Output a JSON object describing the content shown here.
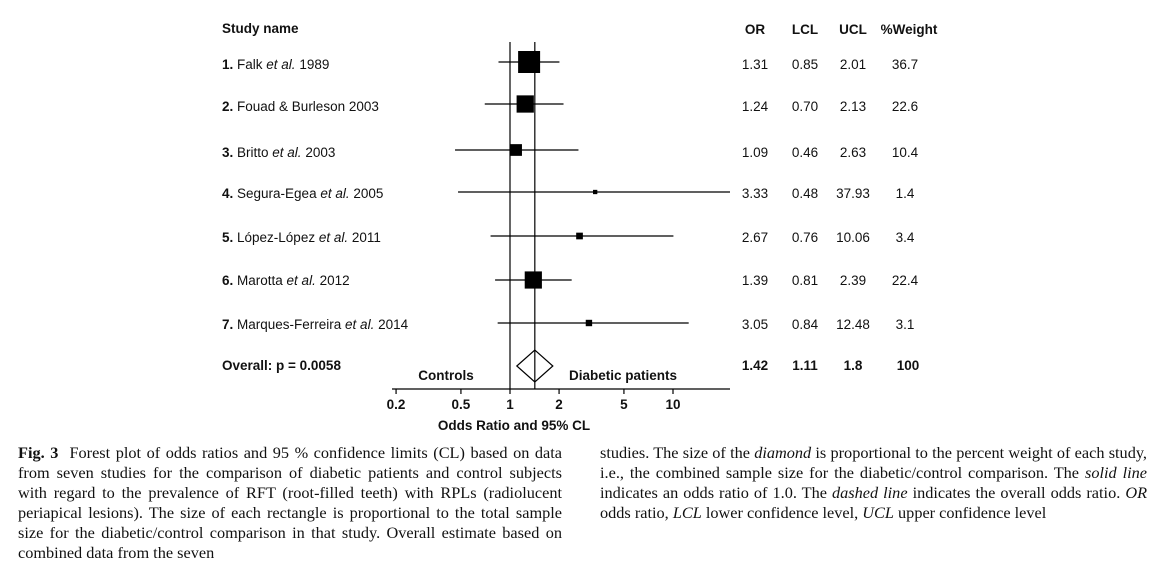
{
  "chart_data": {
    "type": "forest",
    "title": "",
    "xlabel": "Odds Ratio and 95% CL",
    "xscale": "log",
    "xlim": [
      0.2,
      20
    ],
    "xticks": [
      0.2,
      0.5,
      1,
      2,
      5,
      10
    ],
    "xtick_labels": [
      "0.2",
      "0.5",
      "1",
      "2",
      "5",
      "10"
    ],
    "reference_line": 1,
    "side_labels": {
      "left": "Controls",
      "right": "Diabetic patients"
    },
    "column_headers": {
      "study": "Study name",
      "or": "OR",
      "lcl": "LCL",
      "ucl": "UCL",
      "weight": "%Weight"
    },
    "studies": [
      {
        "num": "1.",
        "author": "Falk",
        "etal": true,
        "year": "1989",
        "or": 1.31,
        "lcl": 0.85,
        "ucl": 2.01,
        "weight": 36.7,
        "or_text": "1.31",
        "lcl_text": "0.85",
        "ucl_text": "2.01",
        "weight_text": "36.7"
      },
      {
        "num": "2.",
        "author": "Fouad & Burleson",
        "etal": false,
        "year": "2003",
        "or": 1.24,
        "lcl": 0.7,
        "ucl": 2.13,
        "weight": 22.6,
        "or_text": "1.24",
        "lcl_text": "0.70",
        "ucl_text": "2.13",
        "weight_text": "22.6"
      },
      {
        "num": "3.",
        "author": "Britto",
        "etal": true,
        "year": "2003",
        "or": 1.09,
        "lcl": 0.46,
        "ucl": 2.63,
        "weight": 10.4,
        "or_text": "1.09",
        "lcl_text": "0.46",
        "ucl_text": "2.63",
        "weight_text": "10.4"
      },
      {
        "num": "4.",
        "author": "Segura-Egea",
        "etal": true,
        "year": "2005",
        "or": 3.33,
        "lcl": 0.48,
        "ucl": 37.93,
        "weight": 1.4,
        "or_text": "3.33",
        "lcl_text": "0.48",
        "ucl_text": "37.93",
        "weight_text": "1.4"
      },
      {
        "num": "5.",
        "author": "López-López",
        "etal": true,
        "year": "2011",
        "or": 2.67,
        "lcl": 0.76,
        "ucl": 10.06,
        "weight": 3.4,
        "or_text": "2.67",
        "lcl_text": "0.76",
        "ucl_text": "10.06",
        "weight_text": "3.4"
      },
      {
        "num": "6.",
        "author": "Marotta",
        "etal": true,
        "year": "2012",
        "or": 1.39,
        "lcl": 0.81,
        "ucl": 2.39,
        "weight": 22.4,
        "or_text": "1.39",
        "lcl_text": "0.81",
        "ucl_text": "2.39",
        "weight_text": "22.4"
      },
      {
        "num": "7.",
        "author": "Marques-Ferreira",
        "etal": true,
        "year": "2014",
        "or": 3.05,
        "lcl": 0.84,
        "ucl": 12.48,
        "weight": 3.1,
        "or_text": "3.05",
        "lcl_text": "0.84",
        "ucl_text": "12.48",
        "weight_text": "3.1"
      }
    ],
    "overall": {
      "label": "Overall: p = 0.0058",
      "or": 1.42,
      "lcl": 1.11,
      "ucl": 1.8,
      "weight": 100,
      "or_text": "1.42",
      "lcl_text": "1.11",
      "ucl_text": "1.8",
      "weight_text": "100"
    },
    "etal_text": "et al."
  },
  "caption": {
    "fig_label": "Fig. 3",
    "left_text": "Forest plot of odds ratios and 95 % confidence limits (CL) based on data from seven studies for the comparison of diabetic patients and control subjects with regard to the prevalence of RFT (root-filled teeth) with RPLs (radiolucent periapical lesions). The size of each rectangle is proportional to the total sample size for the diabetic/control comparison in that study. Overall estimate based on combined data from the seven",
    "right_parts": [
      {
        "t": "studies. The size of the ",
        "i": false
      },
      {
        "t": "diamond",
        "i": true
      },
      {
        "t": " is proportional to the percent weight of each study, i.e., the combined sample size for the diabetic/control comparison. The ",
        "i": false
      },
      {
        "t": "solid line",
        "i": true
      },
      {
        "t": " indicates an odds ratio of 1.0. The ",
        "i": false
      },
      {
        "t": "dashed line",
        "i": true
      },
      {
        "t": " indicates the overall odds ratio. ",
        "i": false
      },
      {
        "t": "OR",
        "i": true
      },
      {
        "t": " odds ratio, ",
        "i": false
      },
      {
        "t": "LCL",
        "i": true
      },
      {
        "t": " lower confidence level, ",
        "i": false
      },
      {
        "t": "UCL",
        "i": true
      },
      {
        "t": " upper confidence level",
        "i": false
      }
    ]
  }
}
